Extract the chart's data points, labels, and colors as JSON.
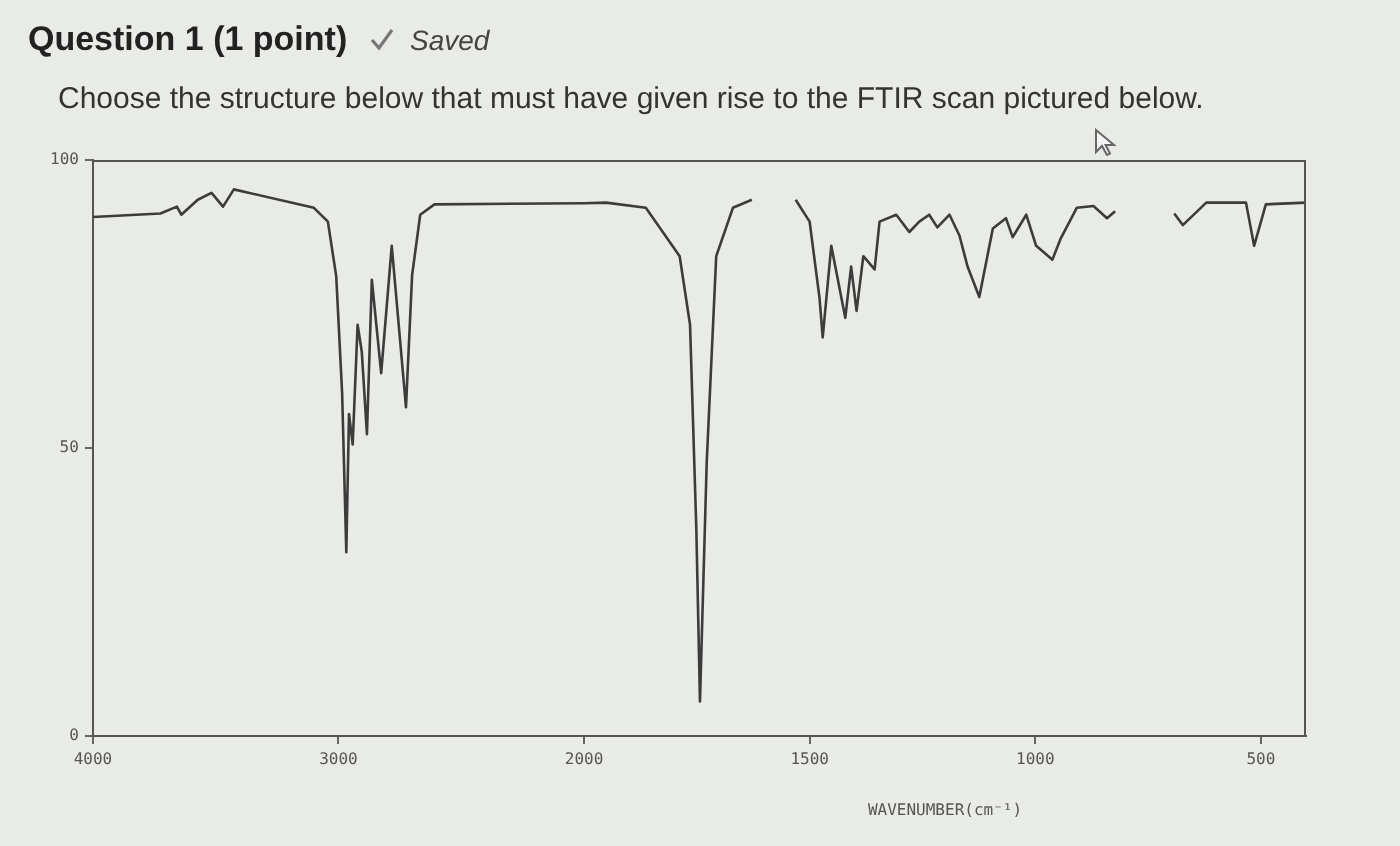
{
  "chart_data": [
    {
      "type": "line",
      "title": "Question 1 (1 point)",
      "subtitle": "Choose the structure below that must have given rise to the FTIR scan pictured below.",
      "annotations": [
        "Saved"
      ],
      "color": "#3c3c3c",
      "marker": "none",
      "grid": false,
      "legend": false,
      "xlim": [
        4000,
        2000
      ],
      "xticks": [
        4000,
        3000,
        2000
      ],
      "ylim": [
        0,
        100
      ],
      "yticks": [
        0,
        50,
        100
      ],
      "x": [
        4000,
        3725,
        3658,
        3640,
        3573,
        3517,
        3470,
        3426,
        3100,
        3043,
        3009,
        2985,
        2968,
        2957,
        2942,
        2922,
        2905,
        2884,
        2864,
        2826,
        2783,
        2725,
        2700,
        2667,
        2609,
        2000
      ],
      "values": [
        90.1,
        90.7,
        91.9,
        90.5,
        93.1,
        94.3,
        91.9,
        94.9,
        91.7,
        89.3,
        79.8,
        59.5,
        31.9,
        55.9,
        50.6,
        71.4,
        66.7,
        52.4,
        79.2,
        63,
        85.1,
        57.1,
        80,
        90.5,
        92.3,
        92.5
      ]
    },
    {
      "type": "line",
      "xlabel": "WAVENUMBER(cm⁻¹)",
      "color": "#3c3c3c",
      "marker": "none",
      "grid": false,
      "legend": false,
      "tick_labels": "x",
      "xlim": [
        2000,
        400
      ],
      "xticks": [
        {
          "value": 2000,
          "label": null
        },
        1500,
        1000,
        500
      ],
      "ylim": [
        0,
        100
      ],
      "yticks": [
        0,
        50,
        100
      ],
      "x": [
        2000,
        1951,
        1863,
        1788,
        1765,
        1751,
        1743,
        1728,
        1707,
        1670,
        1628,
        1580,
        1531,
        1500,
        1478,
        1471,
        1452,
        1421,
        1408,
        1396,
        1381,
        1356,
        1345,
        1308,
        1279,
        1257,
        1235,
        1217,
        1190,
        1168,
        1150,
        1124,
        1094,
        1065,
        1050,
        1020,
        998,
        962,
        944,
        908,
        871,
        841,
        823,
        760,
        692,
        673,
        621,
        533,
        515,
        489,
        400
      ],
      "values": [
        92.5,
        92.6,
        91.7,
        83.3,
        71.4,
        35.7,
        6,
        47.6,
        83.3,
        91.7,
        93.1,
        null,
        93.1,
        89.3,
        76,
        69.2,
        85.1,
        72.6,
        81.5,
        73.8,
        83.3,
        81,
        89.3,
        90.5,
        87.5,
        89.3,
        90.5,
        88.3,
        90.5,
        86.9,
        81.5,
        76.2,
        88.1,
        89.9,
        86.6,
        90.5,
        85.1,
        82.7,
        86.3,
        91.7,
        92,
        89.9,
        91.1,
        null,
        90.7,
        88.7,
        92.6,
        92.6,
        85.1,
        92.3,
        92.6
      ]
    }
  ]
}
